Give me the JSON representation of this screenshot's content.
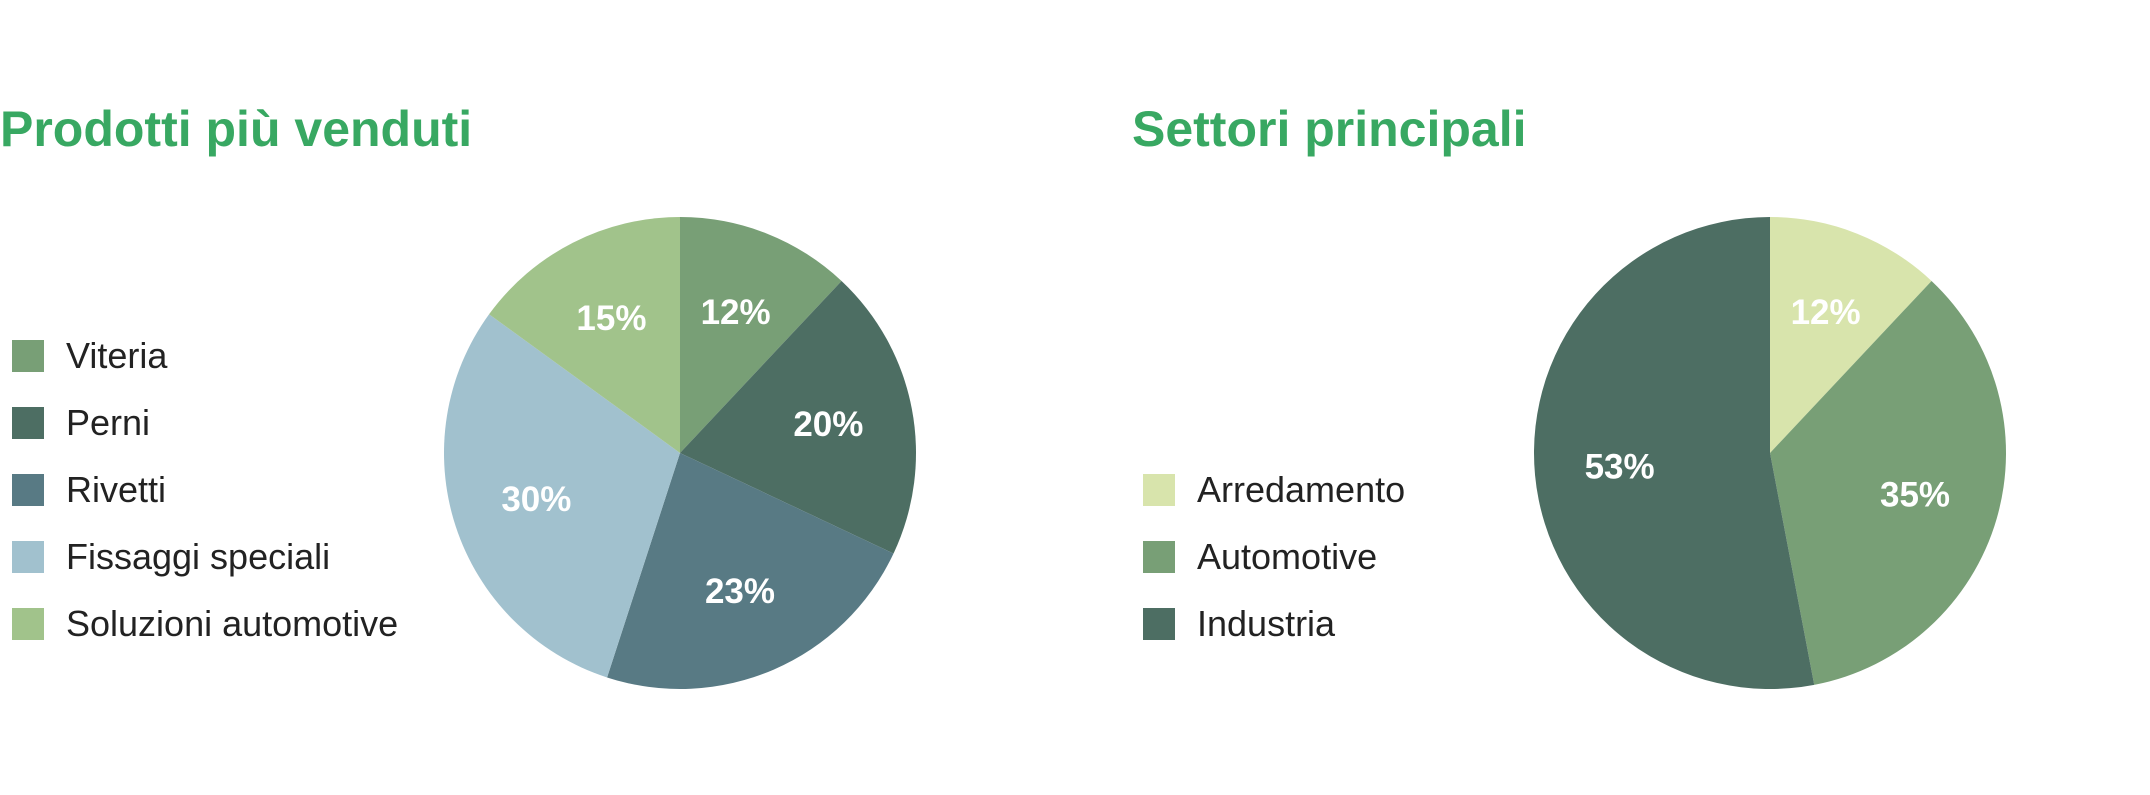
{
  "chart_data": [
    {
      "type": "pie",
      "title": "Prodotti più venduti",
      "categories": [
        "Viteria",
        "Perni",
        "Rivetti",
        "Fissaggi speciali",
        "Soluzioni automotive"
      ],
      "values": [
        12,
        20,
        23,
        30,
        15
      ],
      "labels": [
        "12%",
        "20%",
        "23%",
        "30%",
        "15%"
      ],
      "colors": [
        "#789f76",
        "#4d6e63",
        "#587a84",
        "#a1c1ce",
        "#a1c38b"
      ],
      "legend_position": "left"
    },
    {
      "type": "pie",
      "title": "Settori principali",
      "categories": [
        "Arredamento",
        "Automotive",
        "Industria"
      ],
      "values": [
        12,
        35,
        53
      ],
      "labels": [
        "12%",
        "35%",
        "53%"
      ],
      "colors": [
        "#d8e4ac",
        "#789f76",
        "#4d6e63"
      ],
      "legend_position": "left"
    }
  ]
}
